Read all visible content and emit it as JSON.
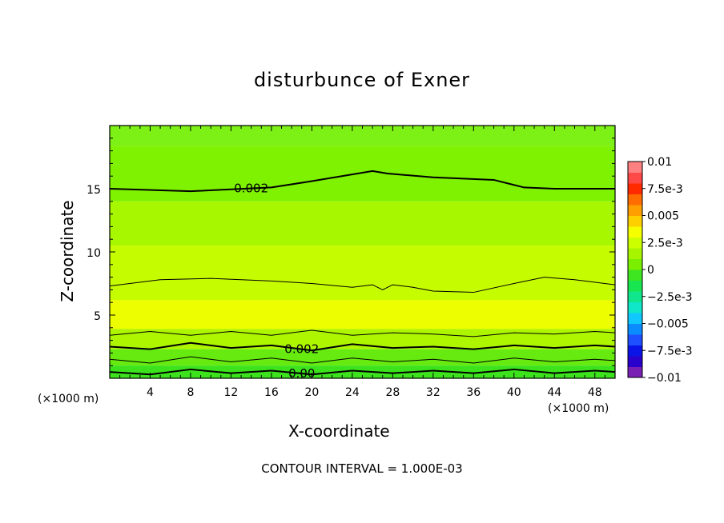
{
  "chart_data": {
    "type": "heatmap",
    "title": "disturbunce of Exner",
    "xlabel": "X-coordinate",
    "ylabel": "Z-coordinate",
    "x_unit_left": "(×1000 m)",
    "x_unit_right": "(×1000 m)",
    "xlim": [
      0,
      50
    ],
    "ylim": [
      0,
      20
    ],
    "x_ticks": [
      "4",
      "8",
      "12",
      "16",
      "20",
      "24",
      "28",
      "32",
      "36",
      "40",
      "44",
      "48"
    ],
    "y_ticks": [
      "5",
      "10",
      "15"
    ],
    "footer": "CONTOUR INTERVAL = 1.000E-03",
    "colorbar": {
      "ticks": [
        "0.01",
        "7.5e-3",
        "0.005",
        "2.5e-3",
        "0",
        "−2.5e-3",
        "−0.005",
        "−7.5e-3",
        "−0.01"
      ],
      "range": [
        -0.01,
        0.01
      ],
      "colors": [
        "#7a1fb3",
        "#2a00cc",
        "#0a14e6",
        "#1e50ff",
        "#0a8cff",
        "#10c8ff",
        "#10e6c8",
        "#10e68c",
        "#18e650",
        "#3de620",
        "#7af000",
        "#a8f500",
        "#ccff00",
        "#f5ff00",
        "#ffd000",
        "#ffa000",
        "#ff6c00",
        "#ff2a00",
        "#ff4848",
        "#ff8080"
      ]
    },
    "layers": [
      {
        "z_top": 20.0,
        "z_bottom": 18.4,
        "value": 0.0015,
        "color": "#7df015"
      },
      {
        "z_top": 18.4,
        "z_bottom": 14.0,
        "value": 0.0018,
        "color": "#7ef200"
      },
      {
        "z_top": 14.0,
        "z_bottom": 10.5,
        "value": 0.0022,
        "color": "#a6f700"
      },
      {
        "z_top": 10.5,
        "z_bottom": 6.2,
        "value": 0.0026,
        "color": "#c6fc00"
      },
      {
        "z_top": 6.2,
        "z_bottom": 3.9,
        "value": 0.003,
        "color": "#ecfe00"
      },
      {
        "z_top": 3.9,
        "z_bottom": 2.3,
        "value": 0.0022,
        "color": "#aef500"
      },
      {
        "z_top": 2.3,
        "z_bottom": 1.0,
        "value": 0.0012,
        "color": "#66ea10"
      },
      {
        "z_top": 1.0,
        "z_bottom": 0.0,
        "value": 0.0003,
        "color": "#3ce31c"
      }
    ],
    "contours": [
      {
        "label": "0.002",
        "x": [
          0,
          8,
          16,
          20,
          26,
          27.5,
          32,
          38,
          41,
          44,
          48,
          50
        ],
        "z": [
          15.0,
          14.8,
          15.1,
          15.6,
          16.4,
          16.2,
          15.9,
          15.7,
          15.1,
          15.0,
          15.0,
          15.0
        ],
        "bold": true
      },
      {
        "label": "",
        "x": [
          0,
          2,
          5,
          10,
          16,
          20,
          24,
          26,
          27,
          28,
          30,
          32,
          36,
          40,
          43,
          46,
          50
        ],
        "z": [
          7.3,
          7.5,
          7.8,
          7.9,
          7.7,
          7.5,
          7.2,
          7.4,
          7.0,
          7.4,
          7.2,
          6.9,
          6.8,
          7.5,
          8.0,
          7.8,
          7.4
        ],
        "bold": false
      },
      {
        "label": "",
        "x": [
          0,
          4,
          8,
          12,
          16,
          20,
          24,
          28,
          32,
          36,
          40,
          44,
          48,
          50
        ],
        "z": [
          3.4,
          3.7,
          3.4,
          3.7,
          3.4,
          3.8,
          3.4,
          3.6,
          3.5,
          3.3,
          3.6,
          3.5,
          3.7,
          3.6
        ],
        "bold": false
      },
      {
        "label": "0.002",
        "x": [
          0,
          4,
          8,
          12,
          16,
          20,
          24,
          28,
          32,
          36,
          40,
          44,
          48,
          50
        ],
        "z": [
          2.5,
          2.3,
          2.8,
          2.4,
          2.6,
          2.2,
          2.7,
          2.4,
          2.5,
          2.3,
          2.6,
          2.4,
          2.6,
          2.5
        ],
        "bold": true
      },
      {
        "label": "",
        "x": [
          0,
          4,
          8,
          12,
          16,
          20,
          24,
          28,
          32,
          36,
          40,
          44,
          48,
          50
        ],
        "z": [
          1.5,
          1.2,
          1.7,
          1.3,
          1.6,
          1.2,
          1.6,
          1.3,
          1.5,
          1.2,
          1.6,
          1.3,
          1.5,
          1.4
        ],
        "bold": false
      },
      {
        "label": "0.00",
        "x": [
          0,
          4,
          8,
          12,
          16,
          20,
          24,
          28,
          32,
          36,
          40,
          44,
          48,
          50
        ],
        "z": [
          0.5,
          0.3,
          0.7,
          0.4,
          0.6,
          0.3,
          0.6,
          0.4,
          0.6,
          0.4,
          0.7,
          0.4,
          0.6,
          0.5
        ],
        "bold": true
      }
    ]
  }
}
